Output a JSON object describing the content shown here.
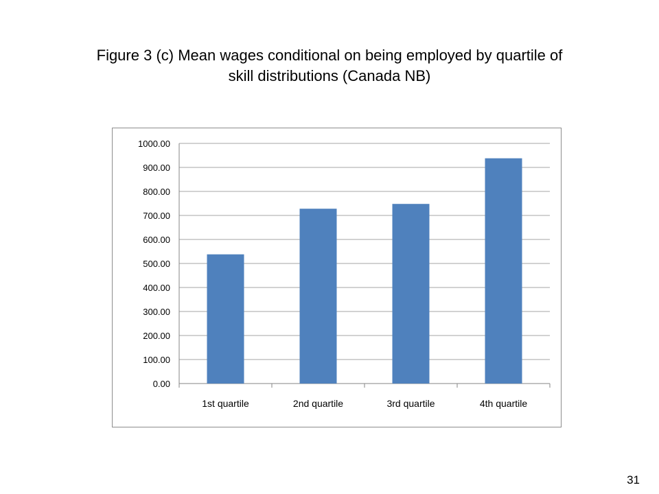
{
  "slide": {
    "title_line1": "Figure 3 (c) Mean wages conditional on being employed by quartile of",
    "title_line2": "skill distributions (Canada NB)",
    "page_number": "31"
  },
  "chart_data": {
    "type": "bar",
    "title": "",
    "xlabel": "",
    "ylabel": "",
    "categories": [
      "1st quartile",
      "2nd quartile",
      "3rd quartile",
      "4th quartile"
    ],
    "values": [
      538,
      728,
      748,
      938
    ],
    "ylim": [
      0,
      1000
    ],
    "yticks": [
      0,
      100,
      200,
      300,
      400,
      500,
      600,
      700,
      800,
      900,
      1000
    ],
    "ytick_labels": [
      "0.00",
      "100.00",
      "200.00",
      "300.00",
      "400.00",
      "500.00",
      "600.00",
      "700.00",
      "800.00",
      "900.00",
      "1000.00"
    ],
    "grid": true,
    "legend": "none",
    "bar_color": "#4f81bd",
    "grid_color": "#a6a6a6"
  }
}
